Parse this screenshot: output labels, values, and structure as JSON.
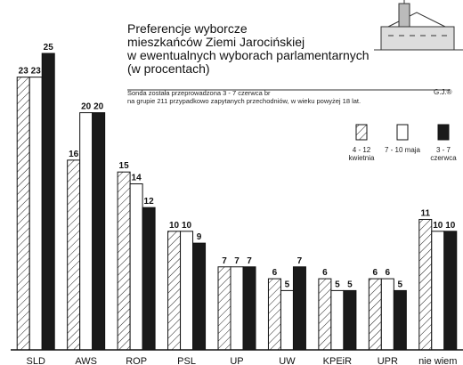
{
  "chart_data": {
    "type": "bar",
    "title": [
      "Preferencje wyborcze",
      "mieszkańców Ziemi Jarocińskiej",
      "w ewentualnych wyborach parlamentarnych",
      "(w procentach)"
    ],
    "subtitle": [
      "Sonda została przeprowadzona 3 - 7 czerwca br",
      "na grupie 211 przypadkowo zapytanych przechodniów, w wieku powyżej 18 lat."
    ],
    "signature": "G.J.®",
    "categories": [
      "SLD",
      "AWS",
      "ROP",
      "PSL",
      "UP",
      "UW",
      "KPEiR",
      "UPR",
      "nie wiem"
    ],
    "series": [
      {
        "name": "4 - 12 kwietnia",
        "color": "hatch",
        "values": [
          23,
          16,
          15,
          10,
          7,
          6,
          6,
          6,
          11
        ]
      },
      {
        "name": "7 - 10 maja",
        "color": "#ffffff",
        "values": [
          23,
          20,
          14,
          10,
          7,
          5,
          5,
          6,
          10
        ]
      },
      {
        "name": "3 - 7 czerwca",
        "color": "#1a1a1a",
        "values": [
          25,
          20,
          12,
          9,
          7,
          7,
          5,
          5,
          10
        ]
      }
    ]
  }
}
